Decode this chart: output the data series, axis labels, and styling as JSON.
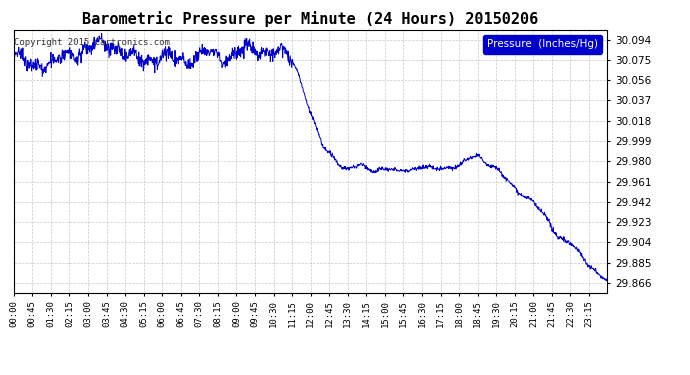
{
  "title": "Barometric Pressure per Minute (24 Hours) 20150206",
  "copyright_text": "Copyright 2015 Cartronics.com",
  "legend_label": "Pressure  (Inches/Hg)",
  "line_color": "#0000cc",
  "background_color": "#ffffff",
  "grid_color": "#bbbbbb",
  "yticks": [
    29.866,
    29.885,
    29.904,
    29.923,
    29.942,
    29.961,
    29.98,
    29.999,
    30.018,
    30.037,
    30.056,
    30.075,
    30.094
  ],
  "ylim": [
    29.857,
    30.103
  ],
  "xtick_labels": [
    "00:00",
    "00:45",
    "01:30",
    "02:15",
    "03:00",
    "03:45",
    "04:30",
    "05:15",
    "06:00",
    "06:45",
    "07:30",
    "08:15",
    "09:00",
    "09:45",
    "10:30",
    "11:15",
    "12:00",
    "12:45",
    "13:30",
    "14:15",
    "15:00",
    "15:45",
    "16:30",
    "17:15",
    "18:00",
    "18:45",
    "19:30",
    "20:15",
    "21:00",
    "21:45",
    "22:30",
    "23:15"
  ],
  "num_points": 1440,
  "figsize": [
    6.9,
    3.75
  ],
  "dpi": 100
}
